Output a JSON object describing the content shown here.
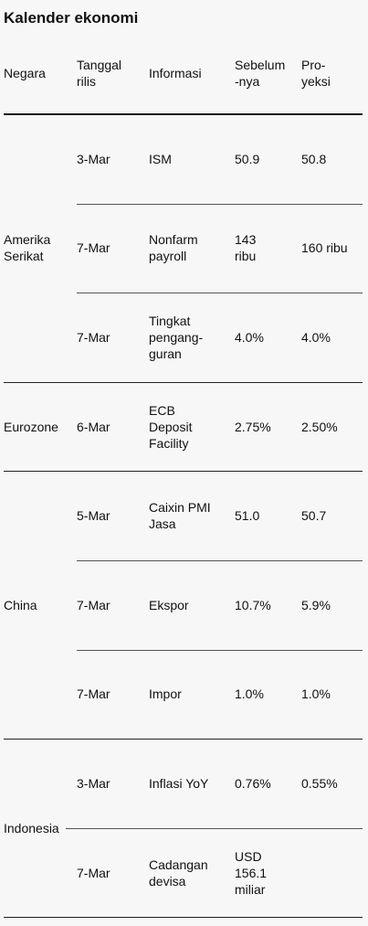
{
  "title": "Kalender ekonomi",
  "table": {
    "header": [
      [
        "Negara"
      ],
      [
        "Tanggal",
        "rilis"
      ],
      [
        "Informasi"
      ],
      [
        "Sebelum",
        "-nya"
      ],
      [
        "Pro-",
        "yeksi"
      ]
    ],
    "groups": [
      {
        "country": [
          "Amerika",
          "Serikat"
        ],
        "rows": [
          {
            "date": [
              "3-Mar"
            ],
            "info": [
              "ISM"
            ],
            "prev": [
              "50.9"
            ],
            "proj": [
              "50.8"
            ]
          },
          {
            "date": [
              "7-Mar"
            ],
            "info": [
              "Nonfarm",
              "payroll"
            ],
            "prev": [
              "143",
              "ribu"
            ],
            "proj": [
              "160 ribu"
            ]
          },
          {
            "date": [
              "7-Mar"
            ],
            "info": [
              "Tingkat",
              "pengang-",
              "guran"
            ],
            "prev": [
              "4.0%"
            ],
            "proj": [
              "4.0%"
            ]
          }
        ]
      },
      {
        "country": [
          "Eurozone"
        ],
        "rows": [
          {
            "date": [
              "6-Mar"
            ],
            "info": [
              "ECB",
              "Deposit",
              "Facility"
            ],
            "prev": [
              "2.75%"
            ],
            "proj": [
              "2.50%"
            ]
          }
        ]
      },
      {
        "country": [
          "China"
        ],
        "rows": [
          {
            "date": [
              "5-Mar"
            ],
            "info": [
              "Caixin PMI",
              "Jasa"
            ],
            "prev": [
              "51.0"
            ],
            "proj": [
              "50.7"
            ]
          },
          {
            "date": [
              "7-Mar"
            ],
            "info": [
              "Ekspor"
            ],
            "prev": [
              "10.7%"
            ],
            "proj": [
              "5.9%"
            ]
          },
          {
            "date": [
              "7-Mar"
            ],
            "info": [
              "Impor"
            ],
            "prev": [
              "1.0%"
            ],
            "proj": [
              "1.0%"
            ]
          }
        ]
      },
      {
        "country": [
          "Indonesia"
        ],
        "rows": [
          {
            "date": [
              "3-Mar"
            ],
            "info": [
              "Inflasi YoY"
            ],
            "prev": [
              "0.76%"
            ],
            "proj": [
              "0.55%"
            ]
          },
          {
            "date": [
              "7-Mar"
            ],
            "info": [
              "Cadangan",
              "devisa"
            ],
            "prev": [
              "USD",
              "156.1",
              "miliar"
            ],
            "proj": []
          }
        ]
      }
    ]
  }
}
